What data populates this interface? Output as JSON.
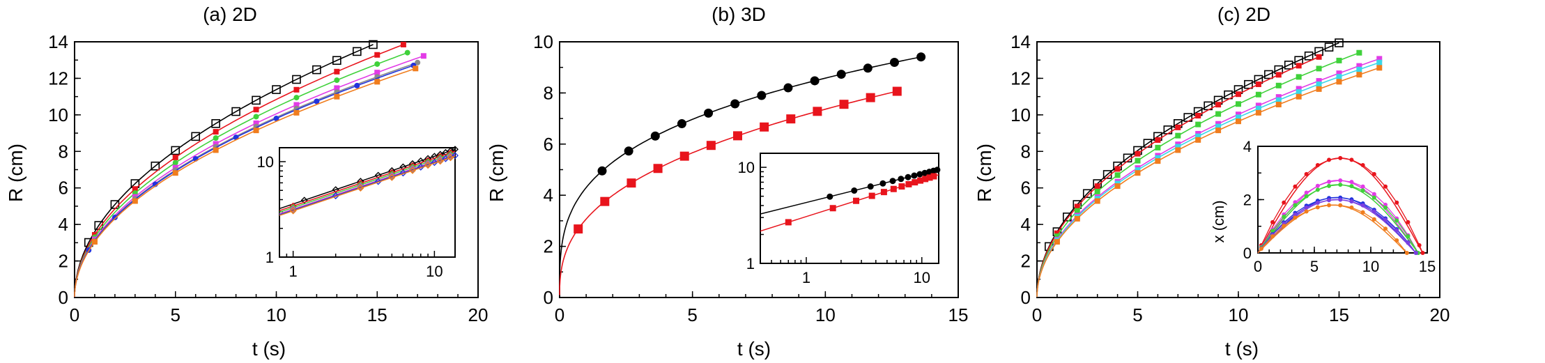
{
  "colors": {
    "black": "#000000",
    "red": "#e8141c",
    "green": "#3fd13a",
    "magenta": "#e23be6",
    "blue": "#2233dd",
    "purple": "#7b3fe0",
    "orange": "#f07d1e",
    "cyan": "#3ad7e8",
    "gray": "#8a8a8a",
    "darkred": "#a01a1a"
  },
  "chart_data": [
    {
      "id": "a",
      "type": "scatter",
      "title": "(a)  2D",
      "xlabel": "t (s)",
      "ylabel": "R (cm)",
      "xlim": [
        0,
        20
      ],
      "ylim": [
        0,
        14
      ],
      "xticks": [
        "0",
        "5",
        "10",
        "15",
        "20"
      ],
      "yticks": [
        "0",
        "2",
        "4",
        "6",
        "8",
        "10",
        "12",
        "14"
      ],
      "series": [
        {
          "name": "black",
          "color": "#000000",
          "marker": "open-square",
          "A": 3.6,
          "exp": 0.5,
          "t": [
            0.7,
            1.2,
            2,
            3,
            4,
            5,
            6,
            7,
            8,
            9,
            10,
            11,
            12,
            13,
            14,
            14.8
          ]
        },
        {
          "name": "red",
          "color": "#e8141c",
          "marker": "square",
          "A": 3.43,
          "exp": 0.5,
          "t": [
            1,
            3,
            5,
            7,
            9,
            11,
            13,
            15,
            16.3
          ]
        },
        {
          "name": "green",
          "color": "#3fd13a",
          "marker": "circle",
          "A": 3.3,
          "exp": 0.5,
          "t": [
            1,
            3,
            5,
            7,
            9,
            11,
            13,
            15,
            16.5
          ]
        },
        {
          "name": "magenta",
          "color": "#e23be6",
          "marker": "square",
          "A": 3.18,
          "exp": 0.5,
          "t": [
            1,
            3,
            5,
            7,
            9,
            11,
            13,
            15,
            17.3
          ]
        },
        {
          "name": "gray",
          "color": "#8a8a8a",
          "marker": "circle",
          "A": 3.12,
          "exp": 0.5,
          "t": [
            1,
            3,
            5,
            7,
            9,
            11,
            13,
            15,
            17
          ]
        },
        {
          "name": "blue",
          "color": "#2233dd",
          "marker": "circle",
          "A": 3.1,
          "exp": 0.5,
          "t": [
            0.7,
            2,
            4,
            6,
            8,
            10,
            12,
            14,
            16.8
          ]
        },
        {
          "name": "orange",
          "color": "#f07d1e",
          "marker": "square",
          "A": 3.05,
          "exp": 0.5,
          "t": [
            1,
            3,
            5,
            7,
            9,
            11,
            13,
            15,
            16.9
          ]
        }
      ],
      "inset": {
        "xscale": "log",
        "yscale": "log",
        "xlim": [
          0.8,
          14
        ],
        "ylim": [
          1,
          14
        ],
        "xticks": [
          "1",
          "10"
        ],
        "yticks": [
          "1",
          "10"
        ]
      }
    },
    {
      "id": "b",
      "type": "scatter",
      "title": "(b)  3D",
      "xlabel": "t (s)",
      "ylabel": "R (cm)",
      "xlim": [
        0,
        15
      ],
      "ylim": [
        0,
        10
      ],
      "xticks": [
        "0",
        "5",
        "10",
        "15"
      ],
      "yticks": [
        "0",
        "2",
        "4",
        "6",
        "8",
        "10"
      ],
      "series": [
        {
          "name": "black",
          "color": "#000000",
          "marker": "circle",
          "A": 4.3,
          "exp": 0.3,
          "t": [
            1.6,
            2.6,
            3.6,
            4.6,
            5.6,
            6.6,
            7.6,
            8.6,
            9.6,
            10.6,
            11.6,
            12.6,
            13.6
          ]
        },
        {
          "name": "red",
          "color": "#e8141c",
          "marker": "square",
          "A": 3.07,
          "exp": 0.38,
          "t": [
            0.7,
            1.7,
            2.7,
            3.7,
            4.7,
            5.7,
            6.7,
            7.7,
            8.7,
            9.7,
            10.7,
            11.7,
            12.7
          ]
        }
      ],
      "inset": {
        "xscale": "log",
        "yscale": "log",
        "xlim": [
          0.4,
          14
        ],
        "ylim": [
          1,
          14
        ],
        "xticks": [
          "1",
          "10"
        ],
        "yticks": [
          "1",
          "10"
        ]
      }
    },
    {
      "id": "c",
      "type": "scatter",
      "title": "(c)  2D",
      "xlabel": "t (s)",
      "ylabel": "R (cm)",
      "xlim": [
        0,
        20
      ],
      "ylim": [
        0,
        14
      ],
      "xticks": [
        "0",
        "5",
        "10",
        "15",
        "20"
      ],
      "yticks": [
        "0",
        "2",
        "4",
        "6",
        "8",
        "10",
        "12",
        "14"
      ],
      "series": [
        {
          "name": "black",
          "color": "#000000",
          "marker": "open-square",
          "A": 3.6,
          "exp": 0.5,
          "t": [
            0.6,
            1,
            1.5,
            2,
            2.5,
            3,
            3.5,
            4,
            4.5,
            5,
            5.5,
            6,
            6.5,
            7,
            7.5,
            8,
            8.5,
            9,
            9.5,
            10,
            10.5,
            11,
            11.5,
            12,
            12.5,
            13,
            13.5,
            14,
            14.5,
            15
          ]
        },
        {
          "name": "red",
          "color": "#e8141c",
          "marker": "square",
          "A": 3.52,
          "exp": 0.5,
          "t": [
            1,
            2,
            3,
            4,
            5,
            6,
            7,
            8,
            9,
            10,
            11,
            12,
            13,
            14
          ]
        },
        {
          "name": "green",
          "color": "#3fd13a",
          "marker": "square",
          "A": 3.35,
          "exp": 0.5,
          "t": [
            1,
            2,
            3,
            4,
            5,
            6,
            7,
            8,
            9,
            10,
            11,
            12,
            13,
            14,
            15,
            16
          ]
        },
        {
          "name": "magenta",
          "color": "#e23be6",
          "marker": "square",
          "A": 3.17,
          "exp": 0.5,
          "t": [
            1,
            2,
            3,
            4,
            5,
            6,
            7,
            8,
            9,
            10,
            11,
            12,
            13,
            14,
            15,
            16,
            17
          ]
        },
        {
          "name": "cyan",
          "color": "#3ad7e8",
          "marker": "square",
          "A": 3.12,
          "exp": 0.5,
          "t": [
            1,
            2,
            3,
            4,
            5,
            6,
            7,
            8,
            9,
            10,
            11,
            12,
            13,
            14,
            15,
            16,
            17
          ]
        },
        {
          "name": "orange",
          "color": "#f07d1e",
          "marker": "square",
          "A": 3.05,
          "exp": 0.5,
          "t": [
            1,
            2,
            3,
            4,
            5,
            6,
            7,
            8,
            9,
            10,
            11,
            12,
            13,
            14,
            15,
            16,
            17
          ]
        }
      ],
      "inset": {
        "xlabel": "",
        "ylabel": "x (cm)",
        "xlim": [
          0,
          15
        ],
        "ylim": [
          0,
          5
        ],
        "xticks": [
          "0",
          "5",
          "10",
          "15"
        ],
        "yticks": [
          "0",
          "2",
          "4"
        ],
        "series": [
          {
            "name": "red",
            "color": "#e8141c",
            "peak": 4.45,
            "tpeak": 7.3,
            "tend": 14.6
          },
          {
            "name": "magenta",
            "color": "#e23be6",
            "peak": 3.4,
            "tpeak": 7.3,
            "tend": 14.2
          },
          {
            "name": "green",
            "color": "#3fd13a",
            "peak": 3.2,
            "tpeak": 7.3,
            "tend": 14.2
          },
          {
            "name": "blue",
            "color": "#2233dd",
            "peak": 2.6,
            "tpeak": 7.0,
            "tend": 14.0
          },
          {
            "name": "purple",
            "color": "#7b3fe0",
            "peak": 2.5,
            "tpeak": 7.0,
            "tend": 14.0
          },
          {
            "name": "orange",
            "color": "#f07d1e",
            "peak": 2.25,
            "tpeak": 6.8,
            "tend": 13.2
          }
        ]
      }
    }
  ]
}
